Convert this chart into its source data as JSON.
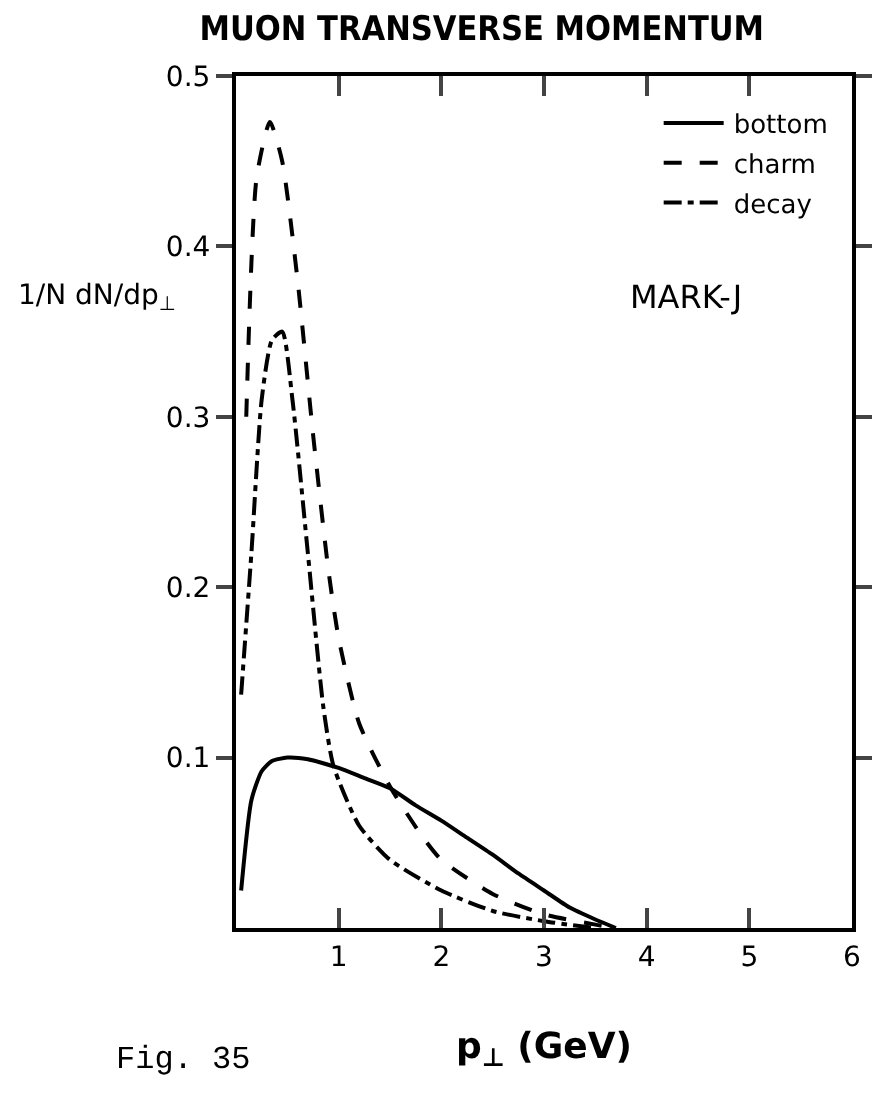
{
  "chart_data": {
    "type": "line",
    "title": "MUON TRANSVERSE MOMENTUM",
    "xlabel": "p$_{⊥}$ (GeV)",
    "ylabel": "1/N dN/dp$_{⊥}$",
    "xlim": [
      0,
      6
    ],
    "xticks": [
      1,
      2,
      3,
      4,
      5,
      6
    ],
    "ylim": [
      0,
      0.5
    ],
    "yticks": [
      0.1,
      0.2,
      0.3,
      0.4,
      0.5
    ],
    "grid": false,
    "legend": "top right",
    "marker": "none",
    "annotations": [
      "MARK-J",
      "Fig. 35"
    ],
    "series": [
      {
        "name": "bottom",
        "color": "#000000",
        "line_style": "solid",
        "x": [
          0.05,
          0.15,
          0.25,
          0.35,
          0.5,
          0.7,
          1.0,
          1.25,
          1.5,
          1.75,
          2.0,
          2.25,
          2.5,
          2.75,
          3.0,
          3.25,
          3.5,
          3.7
        ],
        "values": [
          0.022,
          0.075,
          0.092,
          0.098,
          0.1,
          0.099,
          0.094,
          0.088,
          0.082,
          0.072,
          0.063,
          0.053,
          0.043,
          0.032,
          0.022,
          0.012,
          0.005,
          0.0
        ]
      },
      {
        "name": "charm",
        "color": "#000000",
        "line_style": "dashed",
        "x": [
          0.1,
          0.2,
          0.33,
          0.45,
          0.6,
          0.75,
          0.9,
          1.0,
          1.2,
          1.5,
          1.8,
          2.0,
          2.5,
          3.0,
          3.5,
          3.7
        ],
        "values": [
          0.3,
          0.44,
          0.473,
          0.45,
          0.38,
          0.29,
          0.21,
          0.17,
          0.12,
          0.083,
          0.055,
          0.04,
          0.02,
          0.008,
          0.002,
          0.0
        ]
      },
      {
        "name": "decay",
        "color": "#000000",
        "line_style": "dashdot",
        "x": [
          0.05,
          0.15,
          0.25,
          0.35,
          0.45,
          0.55,
          0.7,
          0.85,
          0.95,
          1.2,
          1.5,
          2.0,
          2.5,
          3.0,
          3.5
        ],
        "values": [
          0.137,
          0.22,
          0.31,
          0.345,
          0.35,
          0.31,
          0.22,
          0.13,
          0.095,
          0.06,
          0.04,
          0.022,
          0.01,
          0.004,
          0.0
        ]
      }
    ]
  }
}
